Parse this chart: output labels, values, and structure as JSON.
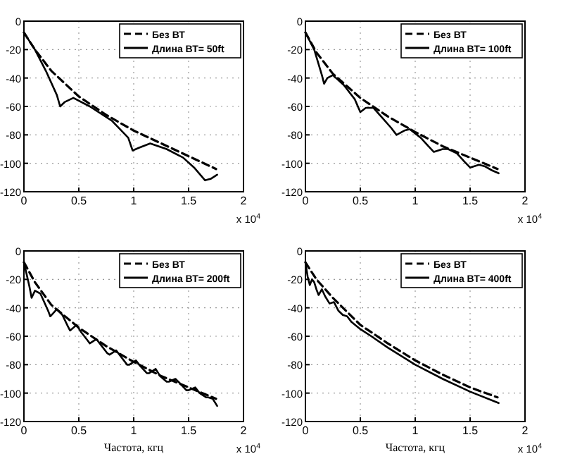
{
  "chart_data": [
    {
      "type": "line",
      "xlim": [
        0,
        2
      ],
      "ylim": [
        -120,
        0
      ],
      "xticks": [
        0,
        0.5,
        1,
        1.5,
        2
      ],
      "yticks": [
        -120,
        -100,
        -80,
        -60,
        -40,
        -20,
        0
      ],
      "grid": true,
      "legend": "top right",
      "annotations": [
        "x 10$^{4}$"
      ],
      "series": [
        {
          "name": "Без  ВТ",
          "color": "#000000",
          "line_style": "dashed",
          "x": [
            0,
            0.1,
            0.25,
            0.5,
            0.75,
            1,
            1.25,
            1.5,
            1.75
          ],
          "values": [
            -8,
            -20,
            -35,
            -53,
            -66,
            -77,
            -86,
            -95,
            -104
          ]
        },
        {
          "name": "Длина ВТ= 50ft",
          "color": "#000000",
          "line_style": "solid",
          "x": [
            0,
            0.1,
            0.2,
            0.3,
            0.33,
            0.37,
            0.45,
            0.6,
            0.8,
            0.95,
            0.99,
            1.05,
            1.15,
            1.3,
            1.45,
            1.55,
            1.65,
            1.7,
            1.76
          ],
          "values": [
            -8,
            -20,
            -35,
            -52,
            -60,
            -57,
            -54,
            -60,
            -70,
            -82,
            -91,
            -89,
            -86,
            -90,
            -96,
            -103,
            -112,
            -111,
            -108
          ]
        }
      ]
    },
    {
      "type": "line",
      "xlim": [
        0,
        2
      ],
      "ylim": [
        -120,
        0
      ],
      "xticks": [
        0,
        0.5,
        1,
        1.5,
        2
      ],
      "yticks": [
        -120,
        -100,
        -80,
        -60,
        -40,
        -20,
        0
      ],
      "grid": true,
      "legend": "top right",
      "annotations": [
        "x 10$^{4}$"
      ],
      "series": [
        {
          "name": "Без  ВТ",
          "color": "#000000",
          "line_style": "dashed",
          "x": [
            0,
            0.1,
            0.25,
            0.5,
            0.75,
            1,
            1.25,
            1.5,
            1.75
          ],
          "values": [
            -8,
            -22,
            -37,
            -54,
            -67,
            -78,
            -88,
            -96,
            -104
          ]
        },
        {
          "name": "Длина ВТ= 100ft",
          "color": "#000000",
          "line_style": "solid",
          "x": [
            0,
            0.08,
            0.15,
            0.17,
            0.2,
            0.25,
            0.35,
            0.45,
            0.5,
            0.55,
            0.62,
            0.7,
            0.78,
            0.83,
            0.9,
            0.95,
            1.05,
            1.12,
            1.17,
            1.25,
            1.3,
            1.38,
            1.45,
            1.5,
            1.58,
            1.63,
            1.7,
            1.76
          ],
          "values": [
            -8,
            -20,
            -38,
            -44,
            -40,
            -38,
            -45,
            -55,
            -64,
            -61,
            -61,
            -68,
            -75,
            -80,
            -77,
            -76,
            -82,
            -88,
            -92,
            -90,
            -90,
            -93,
            -99,
            -103,
            -101,
            -102,
            -105,
            -107
          ]
        }
      ]
    },
    {
      "type": "line",
      "xlim": [
        0,
        2
      ],
      "ylim": [
        -120,
        0
      ],
      "xticks": [
        0,
        0.5,
        1,
        1.5,
        2
      ],
      "yticks": [
        -120,
        -100,
        -80,
        -60,
        -40,
        -20,
        0
      ],
      "grid": true,
      "legend": "top right",
      "xlabel": "Частота, кгц",
      "annotations": [
        "x 10$^{4}$"
      ],
      "series": [
        {
          "name": "Без  ВТ",
          "color": "#000000",
          "line_style": "dashed",
          "x": [
            0,
            0.1,
            0.25,
            0.5,
            0.75,
            1,
            1.25,
            1.5,
            1.75
          ],
          "values": [
            -8,
            -22,
            -38,
            -54,
            -67,
            -78,
            -88,
            -96,
            -104
          ]
        },
        {
          "name": "Длина ВТ= 200ft",
          "color": "#000000",
          "line_style": "solid",
          "x": [
            0,
            0.05,
            0.07,
            0.1,
            0.15,
            0.22,
            0.24,
            0.3,
            0.35,
            0.4,
            0.42,
            0.48,
            0.52,
            0.58,
            0.6,
            0.66,
            0.7,
            0.76,
            0.78,
            0.84,
            0.88,
            0.94,
            0.96,
            1.02,
            1.06,
            1.12,
            1.14,
            1.2,
            1.24,
            1.3,
            1.32,
            1.38,
            1.42,
            1.48,
            1.5,
            1.56,
            1.6,
            1.66,
            1.68,
            1.72,
            1.76
          ],
          "values": [
            -8,
            -25,
            -33,
            -28,
            -30,
            -42,
            -46,
            -41,
            -45,
            -53,
            -56,
            -52,
            -57,
            -63,
            -65,
            -62,
            -66,
            -72,
            -73,
            -70,
            -74,
            -80,
            -80,
            -77,
            -81,
            -86,
            -86,
            -83,
            -88,
            -92,
            -92,
            -90,
            -93,
            -98,
            -98,
            -96,
            -100,
            -103,
            -103,
            -104,
            -109
          ]
        }
      ]
    },
    {
      "type": "line",
      "xlim": [
        0,
        2
      ],
      "ylim": [
        -120,
        0
      ],
      "xticks": [
        0,
        0.5,
        1,
        1.5,
        2
      ],
      "yticks": [
        -120,
        -100,
        -80,
        -60,
        -40,
        -20,
        0
      ],
      "grid": true,
      "legend": "top right",
      "xlabel": "Частота, кгц",
      "annotations": [
        "x 10$^{4}$"
      ],
      "series": [
        {
          "name": "Без  ВТ",
          "color": "#000000",
          "line_style": "dashed",
          "x": [
            0,
            0.1,
            0.25,
            0.5,
            0.75,
            1,
            1.25,
            1.5,
            1.75
          ],
          "values": [
            -8,
            -20,
            -33,
            -52,
            -65,
            -77,
            -87,
            -96,
            -103
          ]
        },
        {
          "name": "Длина ВТ= 400ft",
          "color": "#000000",
          "line_style": "solid",
          "x": [
            0,
            0.02,
            0.04,
            0.06,
            0.08,
            0.1,
            0.12,
            0.15,
            0.18,
            0.22,
            0.26,
            0.3,
            0.34,
            0.38,
            0.42,
            0.5,
            0.6,
            0.75,
            1,
            1.25,
            1.5,
            1.76
          ],
          "values": [
            -8,
            -18,
            -24,
            -20,
            -22,
            -27,
            -31,
            -27,
            -32,
            -37,
            -36,
            -42,
            -45,
            -46,
            -50,
            -55,
            -60,
            -68,
            -80,
            -90,
            -99,
            -107
          ]
        }
      ]
    }
  ]
}
